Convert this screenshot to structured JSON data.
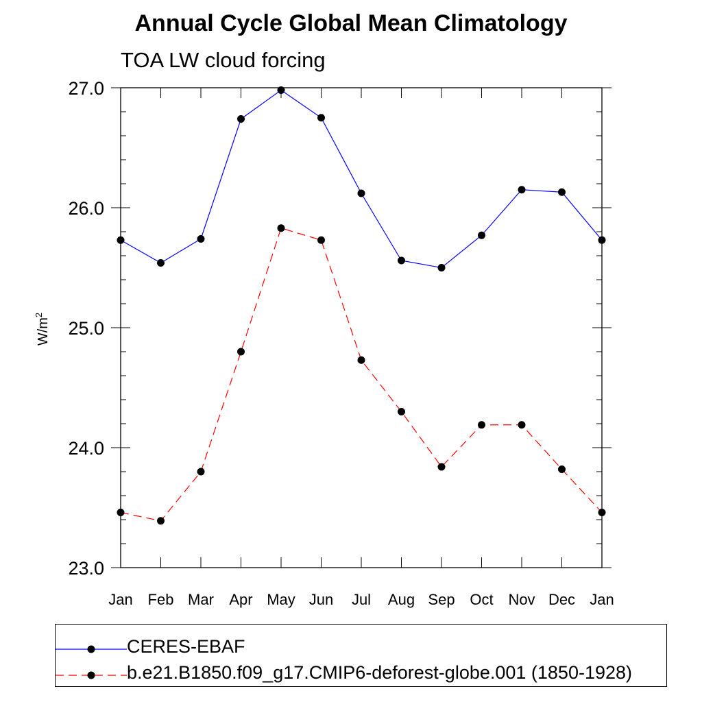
{
  "chart_data": {
    "type": "line",
    "title": "Annual Cycle Global Mean Climatology",
    "subtitle": "TOA LW cloud forcing",
    "ylabel_main": "W/m",
    "ylabel_sup": "2",
    "xlabel": "",
    "categories": [
      "Jan",
      "Feb",
      "Mar",
      "Apr",
      "May",
      "Jun",
      "Jul",
      "Aug",
      "Sep",
      "Oct",
      "Nov",
      "Dec",
      "Jan"
    ],
    "ylim": [
      23.0,
      27.0
    ],
    "yticks": [
      "23.0",
      "24.0",
      "25.0",
      "26.0",
      "27.0"
    ],
    "series": [
      {
        "name": "CERES-EBAF",
        "color": "#0000ff",
        "dash": "solid",
        "values": [
          25.73,
          25.54,
          25.74,
          26.74,
          26.98,
          26.75,
          26.12,
          25.56,
          25.5,
          25.77,
          26.15,
          26.13,
          25.73
        ]
      },
      {
        "name": "b.e21.B1850.f09_g17.CMIP6-deforest-globe.001 (1850-1928)",
        "color": "#ff0000",
        "dash": "dashed",
        "values": [
          23.46,
          23.39,
          23.8,
          24.8,
          25.83,
          25.73,
          24.73,
          24.3,
          23.84,
          24.19,
          24.19,
          23.82,
          23.46
        ]
      }
    ],
    "legend_position": "bottom"
  }
}
